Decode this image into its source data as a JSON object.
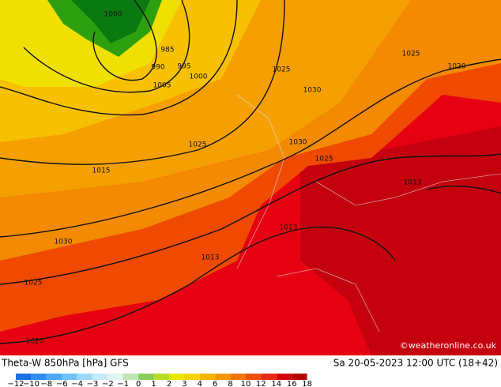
{
  "header": {
    "title": "Theta-W 850hPa [hPa] GFS",
    "datetime": "Sa 20-05-2023 12:00 UTC (18+42)"
  },
  "credit": "©weatheronline.co.uk",
  "legend": {
    "labels": [
      "−12",
      "−10",
      "−8",
      "−6",
      "−4",
      "−3",
      "−2",
      "−1",
      "0",
      "1",
      "2",
      "3",
      "4",
      "6",
      "8",
      "10",
      "12",
      "14",
      "16",
      "18"
    ]
  },
  "isobar_labels": [
    "1000",
    "985",
    "990",
    "995",
    "1000",
    "1005",
    "1025",
    "1025",
    "1030",
    "1020",
    "1030",
    "1025",
    "1015",
    "1025",
    "1013",
    "1013",
    "1030",
    "1025",
    "1020",
    "1013"
  ]
}
